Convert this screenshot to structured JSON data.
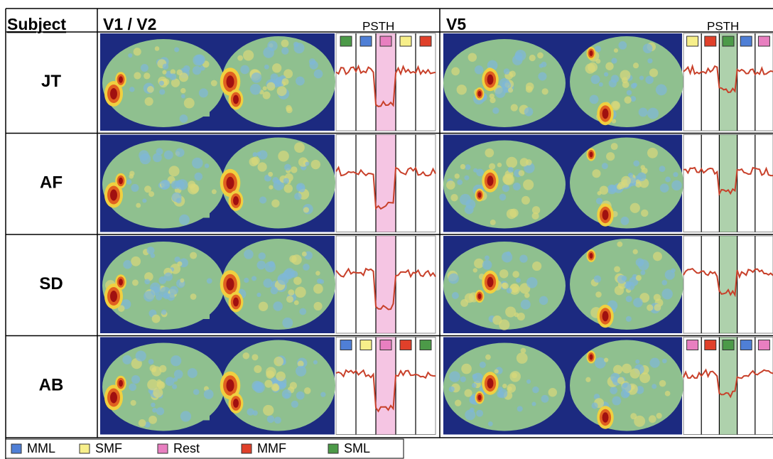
{
  "header": {
    "subject": "Subject",
    "v1v2": "V1 / V2",
    "psth_left": "PSTH",
    "v5": "V5",
    "psth_right": "PSTH"
  },
  "subjects": [
    "JT",
    "AF",
    "SD",
    "AB"
  ],
  "legend": [
    {
      "label": "MML",
      "color": "#4f7fd6"
    },
    {
      "label": "SMF",
      "color": "#f7ef8a"
    },
    {
      "label": "Rest",
      "color": "#e87fc0"
    },
    {
      "label": "MMF",
      "color": "#e0402a"
    },
    {
      "label": "SML",
      "color": "#4c9a48"
    }
  ]
}
